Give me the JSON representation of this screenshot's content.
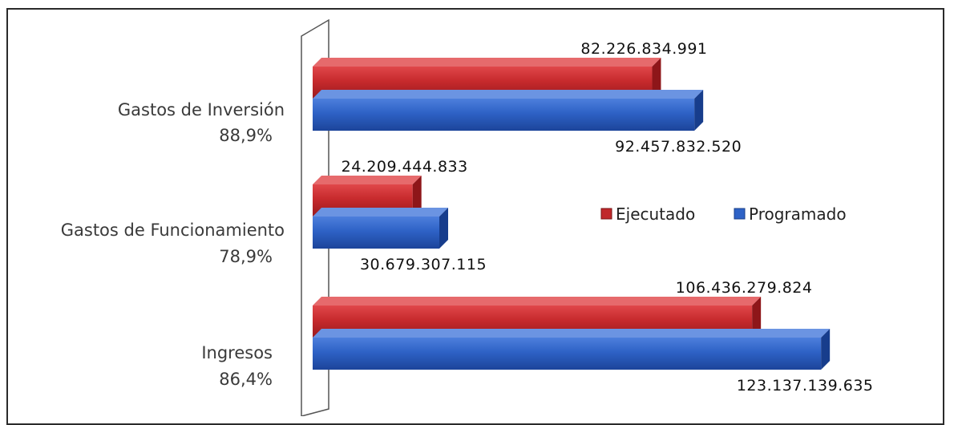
{
  "chart_data": {
    "type": "bar",
    "orientation": "horizontal",
    "three_d": true,
    "categories": [
      {
        "label": "Gastos de Inversión",
        "percent": "88,9%"
      },
      {
        "label": "Gastos de Funcionamiento",
        "percent": "78,9%"
      },
      {
        "label": "Ingresos",
        "percent": "86,4%"
      }
    ],
    "series": [
      {
        "name": "Ejecutado",
        "color": "#c0282b",
        "values": [
          82226834991,
          24209444833,
          106436279824
        ],
        "labels": [
          "82.226.834.991",
          "24.209.444.833",
          "106.436.279.824"
        ]
      },
      {
        "name": "Programado",
        "color": "#2e62c6",
        "values": [
          92457832520,
          30679307115,
          123137139635
        ],
        "labels": [
          "92.457.832.520",
          "30.679.307.115",
          "123.137.139.635"
        ]
      }
    ],
    "legend": "center-right"
  }
}
